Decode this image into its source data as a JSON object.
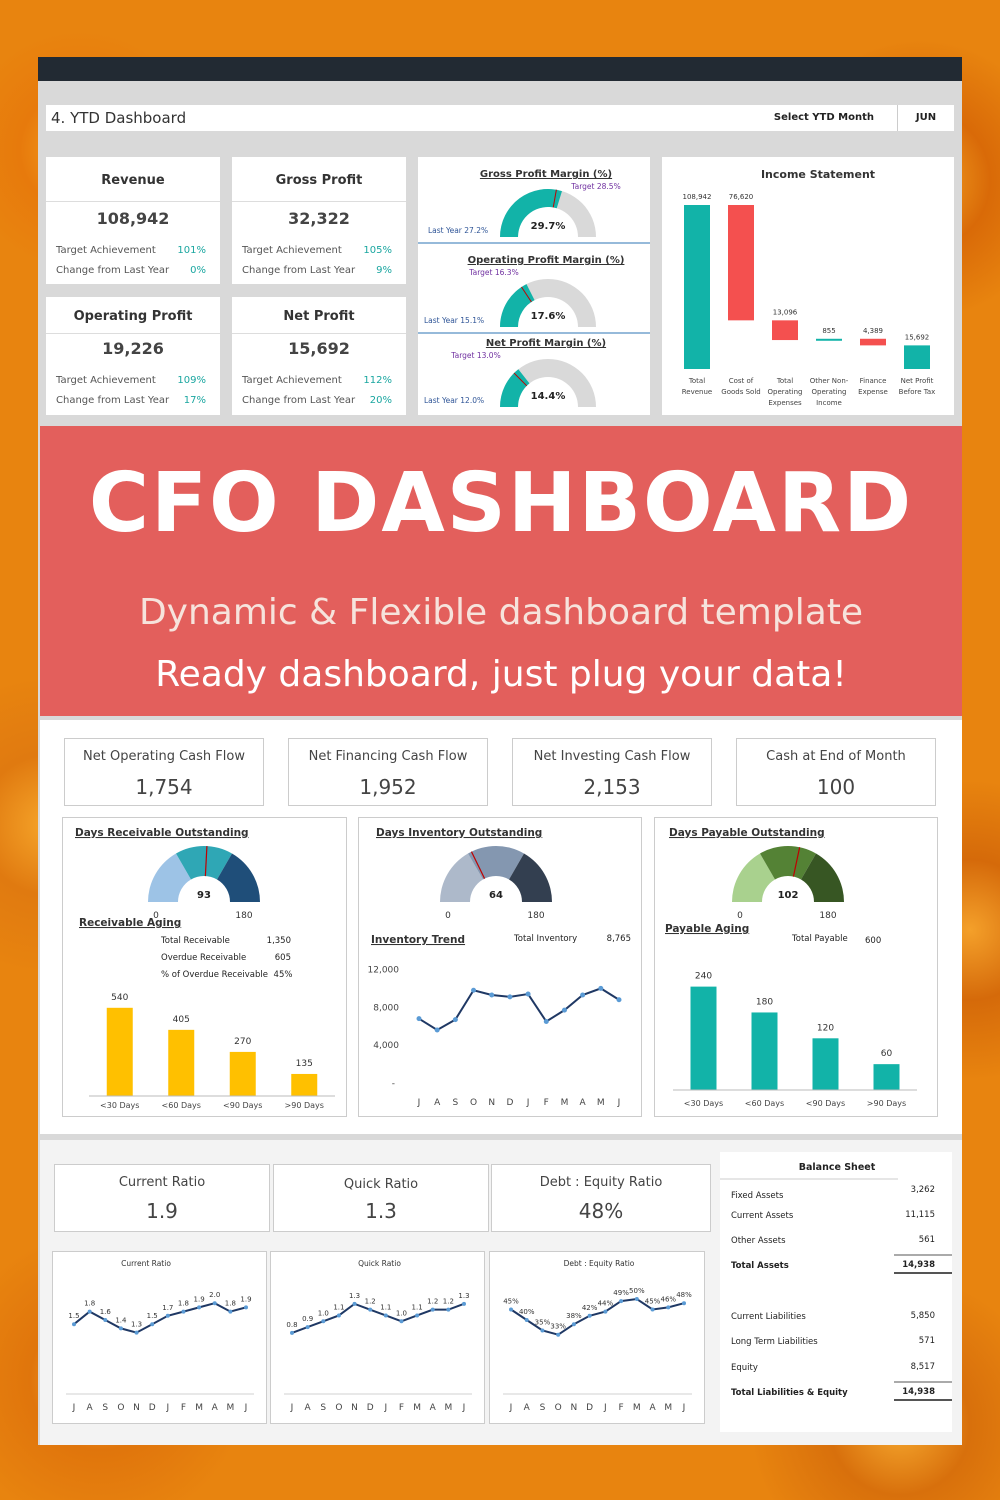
{
  "header": {
    "title": "4. YTD Dashboard",
    "select_label": "Select YTD Month",
    "month": "JUN"
  },
  "kpis": [
    {
      "title": "Revenue",
      "value": "108,942",
      "target_label": "Target Achievement",
      "target": "101%",
      "change_label": "Change from Last Year",
      "change": "0%"
    },
    {
      "title": "Gross Profit",
      "value": "32,322",
      "target_label": "Target Achievement",
      "target": "105%",
      "change_label": "Change from Last Year",
      "change": "9%"
    },
    {
      "title": "Operating Profit",
      "value": "19,226",
      "target_label": "Target Achievement",
      "target": "109%",
      "change_label": "Change from Last Year",
      "change": "17%"
    },
    {
      "title": "Net Profit",
      "value": "15,692",
      "target_label": "Target Achievement",
      "target": "112%",
      "change_label": "Change from Last Year",
      "change": "20%"
    }
  ],
  "margins": [
    {
      "title": "Gross Profit Margin (%)",
      "target": "Target 28.5%",
      "last_year": "Last Year 27.2%",
      "value": "29.7%",
      "pct": 29.7
    },
    {
      "title": "Operating Profit Margin (%)",
      "target": "Target 16.3%",
      "last_year": "Last Year 15.1%",
      "value": "17.6%",
      "pct": 17.6
    },
    {
      "title": "Net Profit Margin (%)",
      "target": "Target 13.0%",
      "last_year": "Last Year 12.0%",
      "value": "14.4%",
      "pct": 14.4
    }
  ],
  "income_statement": {
    "title": "Income Statement",
    "items": [
      {
        "label": [
          "Total",
          "Revenue"
        ],
        "value": "108,942",
        "num": 108942,
        "kind": "total"
      },
      {
        "label": [
          "Cost of",
          "Goods Sold"
        ],
        "value": "76,620",
        "num": 76620,
        "kind": "neg"
      },
      {
        "label": [
          "Total",
          "Operating",
          "Expenses"
        ],
        "value": "13,096",
        "num": 13096,
        "kind": "neg"
      },
      {
        "label": [
          "Other Non-",
          "Operating",
          "Income"
        ],
        "value": "855",
        "num": 855,
        "kind": "pos"
      },
      {
        "label": [
          "Finance",
          "Expense"
        ],
        "value": "4,389",
        "num": 4389,
        "kind": "neg"
      },
      {
        "label": [
          "Net Profit",
          "Before Tax"
        ],
        "value": "15,692",
        "num": 15692,
        "kind": "total"
      }
    ]
  },
  "banner": {
    "title": "CFO DASHBOARD",
    "subtitle": "Dynamic & Flexible dashboard template",
    "tagline": "Ready dashboard, just plug your data!"
  },
  "cash_kpis": [
    {
      "title": "Net Operating Cash Flow",
      "value": "1,754"
    },
    {
      "title": "Net Financing Cash Flow",
      "value": "1,952"
    },
    {
      "title": "Net Investing Cash Flow",
      "value": "2,153"
    },
    {
      "title": "Cash at End of Month",
      "value": "100"
    }
  ],
  "dro": {
    "title": "Days Receivable Outstanding",
    "value": "93",
    "min": "0",
    "max": "180",
    "aging_title": "Receivable Aging",
    "stats": [
      {
        "label": "Total Receivable",
        "value": "1,350"
      },
      {
        "label": "Overdue Receivable",
        "value": "605"
      },
      {
        "label": "% of Overdue Receivable",
        "value": "45%"
      }
    ]
  },
  "dio": {
    "title": "Days Inventory Outstanding",
    "value": "64",
    "min": "0",
    "max": "180",
    "trend_title": "Inventory Trend",
    "total_label": "Total Inventory",
    "total_value": "8,765",
    "yticks": [
      "12,000",
      "8,000",
      "4,000",
      "-"
    ]
  },
  "dpo": {
    "title": "Days Payable Outstanding",
    "value": "102",
    "min": "0",
    "max": "180",
    "aging_title": "Payable Aging",
    "total_label": "Total Payable",
    "total_value": "600"
  },
  "ratio_kpis": [
    {
      "title": "Current Ratio",
      "value": "1.9"
    },
    {
      "title": "Quick Ratio",
      "value": "1.3"
    },
    {
      "title": "Debt : Equity Ratio",
      "value": "48%"
    }
  ],
  "balance_sheet": {
    "title": "Balance Sheet",
    "rows": [
      {
        "label": "Fixed Assets",
        "value": "3,262"
      },
      {
        "label": "Current Assets",
        "value": "11,115"
      },
      {
        "label": "Other Assets",
        "value": "561"
      },
      {
        "label": "Total Assets",
        "value": "14,938",
        "total": true
      },
      {
        "label": "Current Liabilities",
        "value": "5,850"
      },
      {
        "label": "Long Term Liabilities",
        "value": "571"
      },
      {
        "label": "Equity",
        "value": "8,517"
      },
      {
        "label": "Total Liabilities & Equity",
        "value": "14,938",
        "total": true
      }
    ]
  },
  "chart_data": [
    {
      "type": "bar",
      "title": "Receivable Aging",
      "categories": [
        "<30 Days",
        "<60 Days",
        "<90 Days",
        ">90 Days"
      ],
      "values": [
        540,
        405,
        270,
        135
      ],
      "ylim": [
        0,
        600
      ],
      "color": "#ffc000"
    },
    {
      "type": "line",
      "title": "Inventory Trend",
      "x": [
        "J",
        "A",
        "S",
        "O",
        "N",
        "D",
        "J",
        "F",
        "M",
        "A",
        "M",
        "J"
      ],
      "values": [
        6800,
        5600,
        6700,
        9800,
        9300,
        9100,
        9400,
        6500,
        7700,
        9300,
        10000,
        8800
      ],
      "ylim": [
        0,
        13000
      ]
    },
    {
      "type": "bar",
      "title": "Payable Aging",
      "categories": [
        "<30 Days",
        "<60 Days",
        "<90 Days",
        ">90 Days"
      ],
      "values": [
        240,
        180,
        120,
        60
      ],
      "ylim": [
        0,
        260
      ],
      "color": "#12b3a8"
    },
    {
      "type": "line",
      "title": "Current Ratio",
      "x": [
        "J",
        "A",
        "S",
        "O",
        "N",
        "D",
        "J",
        "F",
        "M",
        "A",
        "M",
        "J"
      ],
      "values": [
        1.5,
        1.8,
        1.6,
        1.4,
        1.3,
        1.5,
        1.7,
        1.8,
        1.9,
        2.0,
        1.8,
        1.9
      ],
      "labels": [
        "1.5",
        "1.8",
        "1.6",
        "1.4",
        "1.3",
        "1.5",
        "1.7",
        "1.8",
        "1.9",
        "2.0",
        "1.8",
        "1.9"
      ],
      "ylim": [
        0.6,
        2.4
      ]
    },
    {
      "type": "line",
      "title": "Quick Ratio",
      "x": [
        "J",
        "A",
        "S",
        "O",
        "N",
        "D",
        "J",
        "F",
        "M",
        "A",
        "M",
        "J"
      ],
      "values": [
        0.8,
        0.9,
        1.0,
        1.1,
        1.3,
        1.2,
        1.1,
        1.0,
        1.1,
        1.2,
        1.2,
        1.3
      ],
      "labels": [
        "0.8",
        "0.9",
        "1.0",
        "1.1",
        "1.3",
        "1.2",
        "1.1",
        "1.0",
        "1.1",
        "1.2",
        "1.2",
        "1.3"
      ],
      "ylim": [
        0.3,
        1.6
      ]
    },
    {
      "type": "line",
      "title": "Debt : Equity Ratio",
      "x": [
        "J",
        "A",
        "S",
        "O",
        "N",
        "D",
        "J",
        "F",
        "M",
        "A",
        "M",
        "J"
      ],
      "values": [
        45,
        40,
        35,
        33,
        38,
        42,
        44,
        49,
        50,
        45,
        46,
        48
      ],
      "labels": [
        "45%",
        "40%",
        "35%",
        "33%",
        "38%",
        "42%",
        "44%",
        "49%",
        "50%",
        "45%",
        "46%",
        "48%"
      ],
      "ylim": [
        20,
        56
      ]
    }
  ]
}
